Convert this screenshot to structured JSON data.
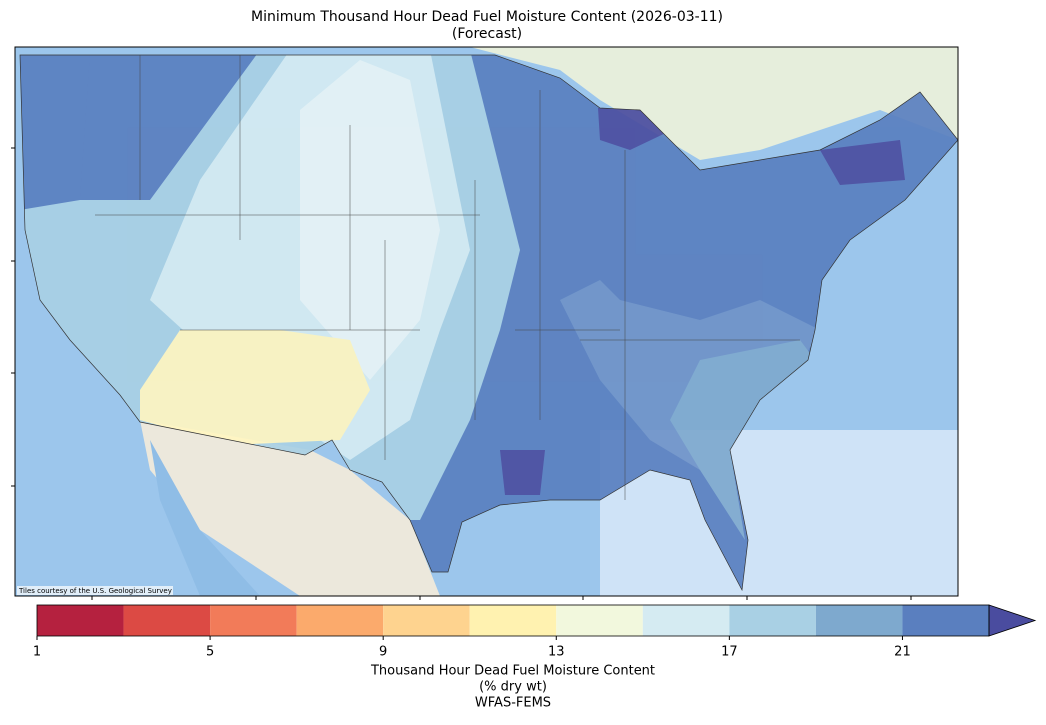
{
  "title": "Minimum Thousand Hour Dead Fuel Moisture Content (2026-03-11)",
  "subtitle": "(Forecast)",
  "attribution": "Tiles courtesy of the U.S. Geological Survey",
  "colorbar": {
    "bounds": [
      1,
      3,
      5,
      7,
      9,
      11,
      13,
      15,
      17,
      19,
      21,
      23
    ],
    "colors": [
      "#b5213f",
      "#dc4a44",
      "#f27b59",
      "#fbaa6c",
      "#fed38f",
      "#fff2b0",
      "#f2f8dd",
      "#d5ebf2",
      "#a9d0e4",
      "#7ea9ce",
      "#5a7fbf"
    ],
    "extend_color": "#4a4c9f",
    "ticks": [
      1,
      5,
      9,
      13,
      17,
      21
    ],
    "label": [
      "Thousand Hour Dead Fuel Moisture Content",
      "(% dry wt)",
      "WFAS-FEMS"
    ]
  }
}
